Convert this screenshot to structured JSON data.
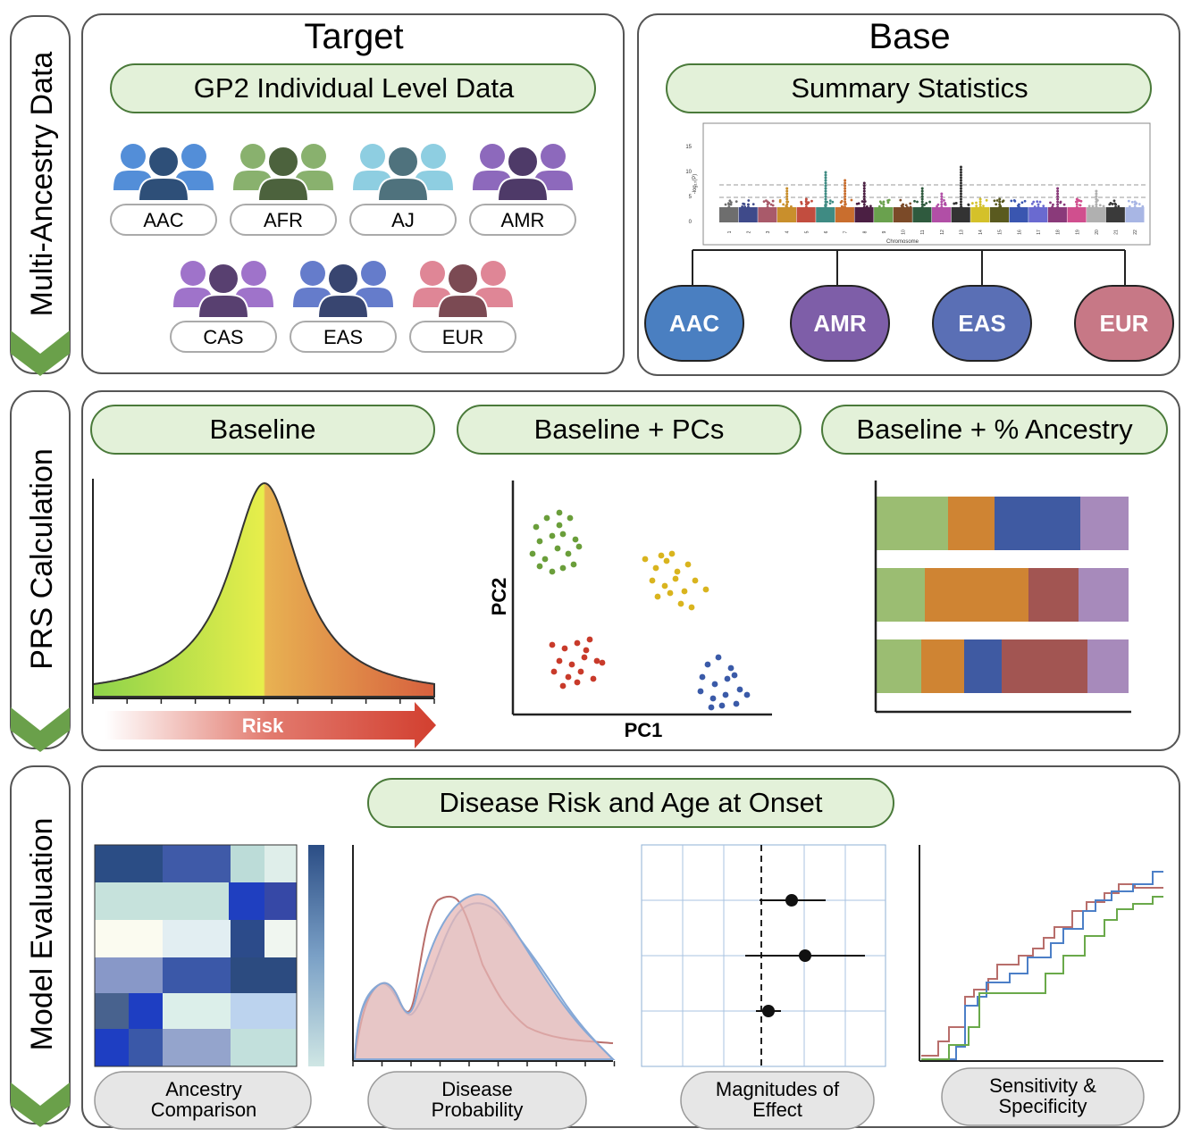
{
  "sections": {
    "multi_ancestry": "Multi-Ancestry Data",
    "prs": "PRS Calculation",
    "model_eval": "Model Evaluation"
  },
  "target": {
    "title": "Target",
    "subtitle": "GP2 Individual Level Data",
    "groups": [
      "AAC",
      "AFR",
      "AJ",
      "AMR",
      "CAS",
      "EAS",
      "EUR"
    ]
  },
  "base": {
    "title": "Base",
    "subtitle": "Summary Statistics",
    "manhattan": {
      "ylabel": "-log₁₀(P)",
      "xlabel": "Chromosome",
      "yticks": [
        "15",
        "10",
        "5",
        "0"
      ],
      "chromosomes": [
        "1",
        "2",
        "3",
        "4",
        "5",
        "6",
        "7",
        "8",
        "9",
        "10",
        "11",
        "12",
        "13",
        "14",
        "15",
        "16",
        "17",
        "18",
        "19",
        "20",
        "21",
        "22"
      ]
    },
    "ancestries": [
      "AAC",
      "AMR",
      "EAS",
      "EUR"
    ]
  },
  "prs": {
    "tabs": [
      "Baseline",
      "Baseline + PCs",
      "Baseline + % Ancestry"
    ],
    "risk_label": "Risk",
    "pc_xlabel": "PC1",
    "pc_ylabel": "PC2"
  },
  "evaluation": {
    "title": "Disease Risk and Age at Onset",
    "pills": [
      "Ancestry Comparison",
      "Disease Probability",
      "Magnitudes of Effect",
      "Sensitivity & Specificity"
    ]
  },
  "colors": {
    "AAC": "#4a7fc1",
    "AFR": "#7a9e62",
    "AJ": "#7fb8c9",
    "AMR": "#7e5ea8",
    "CAS": "#8e67b4",
    "EAS": "#5a6fb5",
    "EUR": "#c77886",
    "pill_green": "#e3f1d9",
    "pill_green_border": "#4a7a3a",
    "chevron": "#6aa04a"
  }
}
